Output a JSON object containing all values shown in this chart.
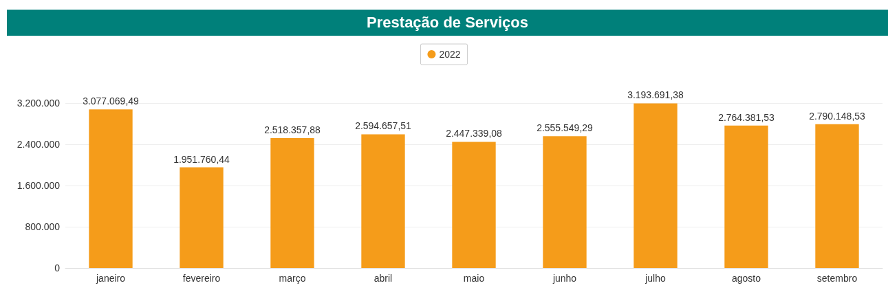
{
  "chart_data": {
    "type": "bar",
    "title": "Prestação de Serviços",
    "categories": [
      "janeiro",
      "fevereiro",
      "março",
      "abril",
      "maio",
      "junho",
      "julho",
      "agosto",
      "setembro"
    ],
    "series": [
      {
        "name": "2022",
        "color": "#f59c1a",
        "values": [
          3077069.49,
          1951760.44,
          2518357.88,
          2594657.51,
          2447339.08,
          2555549.29,
          3193691.38,
          2764381.53,
          2790148.53
        ],
        "value_labels": [
          "3.077.069,49",
          "1.951.760,44",
          "2.518.357,88",
          "2.594.657,51",
          "2.447.339,08",
          "2.555.549,29",
          "3.193.691,38",
          "2.764.381,53",
          "2.790.148,53"
        ]
      }
    ],
    "ylim": [
      0,
      3200000
    ],
    "yticks": [
      {
        "value": 0,
        "label": "0"
      },
      {
        "value": 800000,
        "label": "800.000"
      },
      {
        "value": 1600000,
        "label": "1.600.000"
      },
      {
        "value": 2400000,
        "label": "2.400.000"
      },
      {
        "value": 3200000,
        "label": "3.200.000"
      }
    ],
    "grid": "y",
    "legend": "top"
  }
}
